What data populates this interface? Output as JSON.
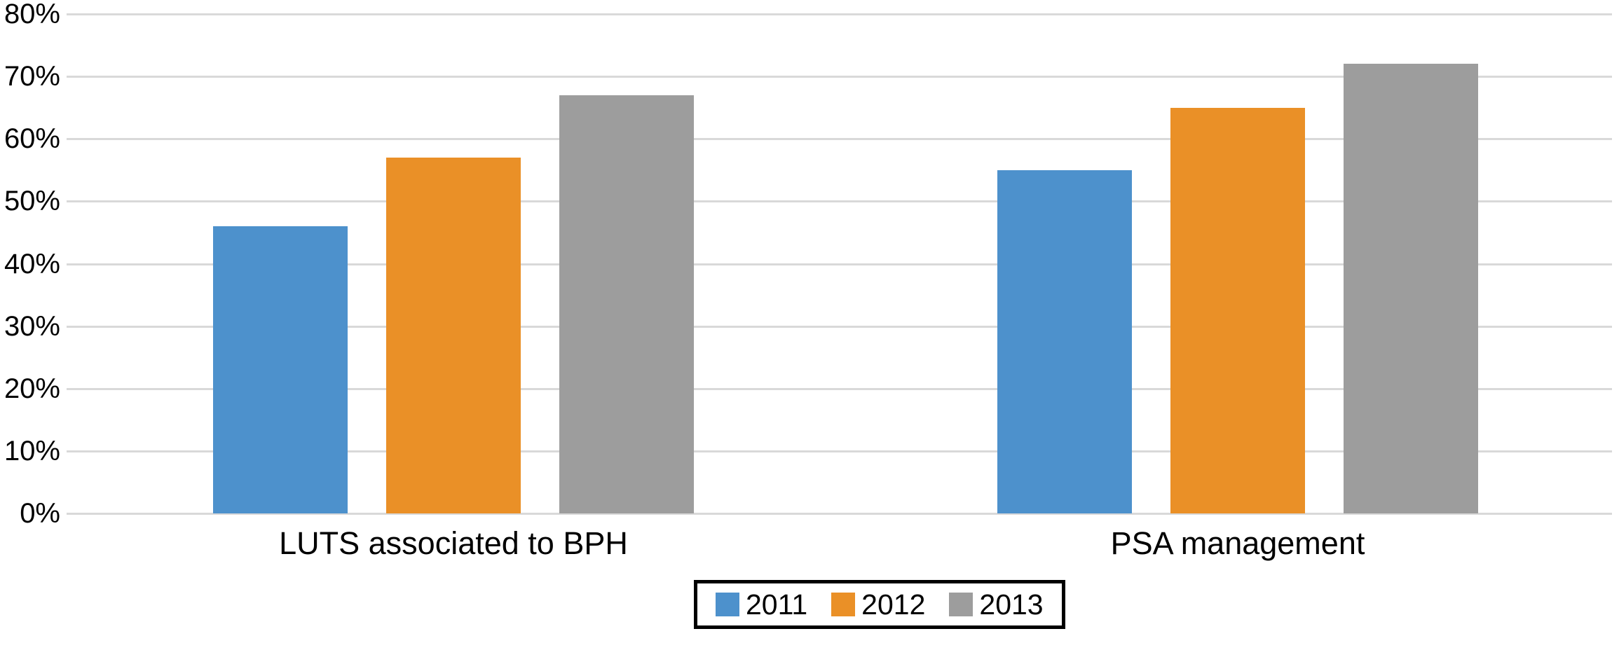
{
  "chart_data": {
    "type": "bar",
    "title": "",
    "categories": [
      "LUTS associated to BPH",
      "PSA management"
    ],
    "series": [
      {
        "name": "2011",
        "color": "#4D91CC",
        "values": [
          46,
          55
        ]
      },
      {
        "name": "2012",
        "color": "#EA9027",
        "values": [
          57,
          65
        ]
      },
      {
        "name": "2013",
        "color": "#9D9D9D",
        "values": [
          67,
          72
        ]
      }
    ],
    "y_axis": {
      "unit": "percent",
      "range": [
        0,
        80
      ],
      "tick_step": 10,
      "tick_labels": [
        "0%",
        "10%",
        "20%",
        "30%",
        "40%",
        "50%",
        "60%",
        "70%",
        "80%"
      ],
      "grid": true,
      "gridline_color": "#D9D9D9"
    },
    "x_axis": {
      "labels": [
        "LUTS associated to BPH",
        "PSA management"
      ]
    },
    "legend": {
      "position": "bottom-center",
      "entries": [
        "2011",
        "2012",
        "2013"
      ],
      "border_color": "#000000",
      "background": "#FFFFFF"
    },
    "background": "#FFFFFF",
    "text_color": "#000000"
  }
}
